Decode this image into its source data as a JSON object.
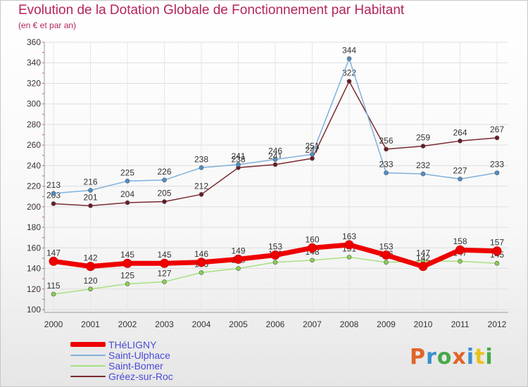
{
  "header": {
    "title": "Evolution de la Dotation Globale de Fonctionnement par Habitant",
    "subtitle": "(en € et par an)"
  },
  "logo": {
    "text": "Proxiti",
    "colors": [
      "#e0642a",
      "#3b8fcc",
      "#49a84a",
      "#e0642a",
      "#3b8fcc",
      "#e8c21a",
      "#49a84a"
    ]
  },
  "chart_data": {
    "type": "line",
    "title": "Evolution de la Dotation Globale de Fonctionnement par Habitant",
    "subtitle": "(en € et par an)",
    "xlabel": "",
    "ylabel": "",
    "categories": [
      "2000",
      "2001",
      "2002",
      "2003",
      "2004",
      "2005",
      "2006",
      "2007",
      "2008",
      "2009",
      "2010",
      "2011",
      "2012"
    ],
    "ylim": [
      100,
      360
    ],
    "yticks": [
      "100",
      "120",
      "140",
      "160",
      "180",
      "200",
      "220",
      "240",
      "260",
      "280",
      "300",
      "320",
      "340",
      "360"
    ],
    "grid": true,
    "legend_position": "bottom-left",
    "series": [
      {
        "name": "Saint-Bomer",
        "color": "#88d24f",
        "line_color": "#a6e17f",
        "values": [
          115,
          120,
          125,
          127,
          136,
          140,
          146,
          148,
          151,
          146,
          147,
          147,
          145
        ],
        "labels": [
          "115",
          "120",
          "125",
          "127",
          "136",
          "140",
          "146",
          "148",
          "151",
          "146",
          "147",
          "147",
          "145"
        ]
      },
      {
        "name": "Gréez-sur-Roc",
        "color": "#6a1a24",
        "line_color": "#7a2a30",
        "values": [
          203,
          201,
          204,
          205,
          212,
          238,
          241,
          247,
          322,
          256,
          259,
          264,
          267
        ],
        "labels": [
          "203",
          "201",
          "204",
          "205",
          "212",
          "238",
          "241",
          "247",
          "322",
          "256",
          "259",
          "264",
          "267"
        ]
      },
      {
        "name": "Saint-Ulphace",
        "color": "#4f8fc7",
        "line_color": "#7fb1dc",
        "values": [
          213,
          216,
          225,
          226,
          238,
          241,
          246,
          251,
          344,
          233,
          232,
          227,
          233
        ],
        "labels": [
          "213",
          "216",
          "225",
          "226",
          "238",
          "241",
          "246",
          "251",
          "344",
          "233",
          "232",
          "227",
          "233"
        ]
      },
      {
        "name": "THéLIGNY",
        "color": "#ee0000",
        "line_color": "#ee0000",
        "values": [
          147,
          142,
          145,
          145,
          146,
          149,
          153,
          160,
          163,
          153,
          142,
          158,
          157
        ],
        "labels": [
          "147",
          "142",
          "145",
          "145",
          "146",
          "149",
          "153",
          "160",
          "163",
          "153",
          "142",
          "158",
          "157"
        ]
      }
    ]
  },
  "legend": [
    {
      "name": "THéLIGNY",
      "color": "#ee0000"
    },
    {
      "name": "Saint-Ulphace",
      "color": "#7fb1dc"
    },
    {
      "name": "Saint-Bomer",
      "color": "#a6e17f"
    },
    {
      "name": "Gréez-sur-Roc",
      "color": "#7a2a30"
    }
  ]
}
